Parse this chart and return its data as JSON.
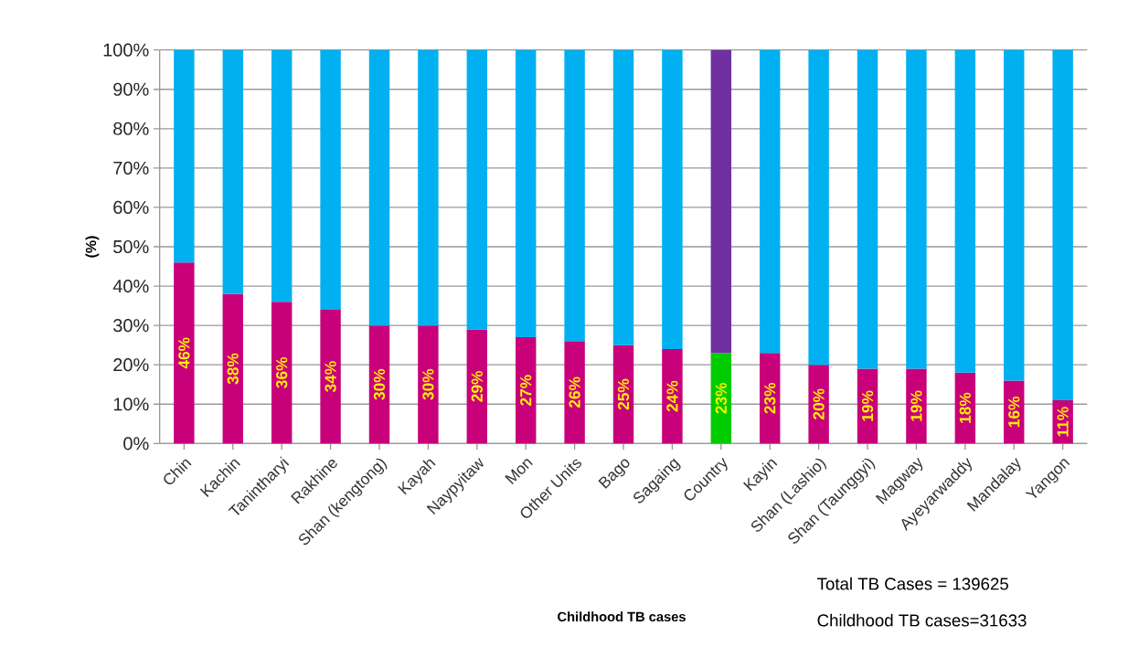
{
  "chart_data": {
    "type": "bar",
    "stacked": true,
    "xlabel": "Childhood TB cases",
    "ylabel": "(%)",
    "categories": [
      "Chin",
      "Kachin",
      "Tanintharyi",
      "Rakhine",
      "Shan (kengtong)",
      "Kayah",
      "Naypyitaw",
      "Mon",
      "Other Units",
      "Bago",
      "Sagaing",
      "Country",
      "Kayin",
      "Shan (Lashio)",
      "Shan (Taunggyi)",
      "Magway",
      "Ayeyarwaddy",
      "Mandalay",
      "Yangon"
    ],
    "series": [
      {
        "values": [
          46,
          38,
          36,
          34,
          30,
          30,
          29,
          27,
          26,
          25,
          24,
          23,
          23,
          20,
          19,
          19,
          18,
          16,
          11
        ],
        "value_labels": [
          "46%",
          "38%",
          "36%",
          "34%",
          "30%",
          "30%",
          "29%",
          "27%",
          "26%",
          "25%",
          "24%",
          "23%",
          "23%",
          "20%",
          "19%",
          "19%",
          "18%",
          "16%",
          "11%"
        ],
        "colors": [
          "#c8007a",
          "#c8007a",
          "#c8007a",
          "#c8007a",
          "#c8007a",
          "#c8007a",
          "#c8007a",
          "#c8007a",
          "#c8007a",
          "#c8007a",
          "#c8007a",
          "#00cc00",
          "#c8007a",
          "#c8007a",
          "#c8007a",
          "#c8007a",
          "#c8007a",
          "#c8007a",
          "#c8007a"
        ]
      },
      {
        "values": [
          54,
          62,
          64,
          66,
          70,
          70,
          71,
          73,
          74,
          75,
          76,
          77,
          77,
          80,
          81,
          81,
          82,
          84,
          89
        ],
        "colors": [
          "#00b0f0",
          "#00b0f0",
          "#00b0f0",
          "#00b0f0",
          "#00b0f0",
          "#00b0f0",
          "#00b0f0",
          "#00b0f0",
          "#00b0f0",
          "#00b0f0",
          "#00b0f0",
          "#7030a0",
          "#00b0f0",
          "#00b0f0",
          "#00b0f0",
          "#00b0f0",
          "#00b0f0",
          "#00b0f0",
          "#00b0f0"
        ]
      }
    ],
    "ylim": [
      0,
      100
    ],
    "yticks": [
      {
        "value": 0,
        "label": "0%"
      },
      {
        "value": 10,
        "label": "10%"
      },
      {
        "value": 20,
        "label": "20%"
      },
      {
        "value": 30,
        "label": "30%"
      },
      {
        "value": 40,
        "label": "40%"
      },
      {
        "value": 50,
        "label": "50%"
      },
      {
        "value": 60,
        "label": "60%"
      },
      {
        "value": 70,
        "label": "70%"
      },
      {
        "value": 80,
        "label": "80%"
      },
      {
        "value": 90,
        "label": "90%"
      },
      {
        "value": 100,
        "label": "100%"
      }
    ],
    "grid": "y",
    "annotations": [
      "Total TB Cases = 139625",
      "Childhood TB cases=31633"
    ]
  }
}
